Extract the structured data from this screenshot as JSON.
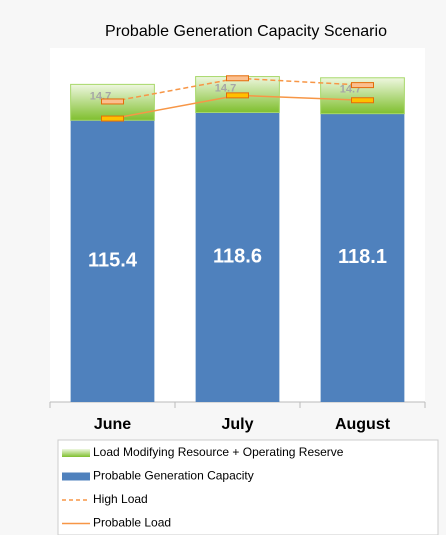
{
  "chart_data": {
    "type": "bar",
    "stacked": true,
    "title": "Probable Generation Capacity Scenario",
    "categories": [
      "June",
      "July",
      "August"
    ],
    "series": [
      {
        "name": "Probable Generation Capacity",
        "color": "#4f81bd",
        "values": [
          115.4,
          118.6,
          118.1
        ]
      },
      {
        "name": "Load Modifying Resource + Operating Reserve",
        "color": "#8dc63f",
        "values": [
          14.7,
          14.7,
          14.7
        ]
      },
      {
        "name": "High Load",
        "color": "#f79646",
        "type": "line",
        "dashed": true,
        "values": [
          123.1,
          132.6,
          129.8
        ]
      },
      {
        "name": "Probable Load",
        "color": "#f79646",
        "type": "line",
        "values": [
          116.1,
          125.6,
          123.6
        ]
      }
    ],
    "ylim": [
      0,
      145
    ]
  }
}
